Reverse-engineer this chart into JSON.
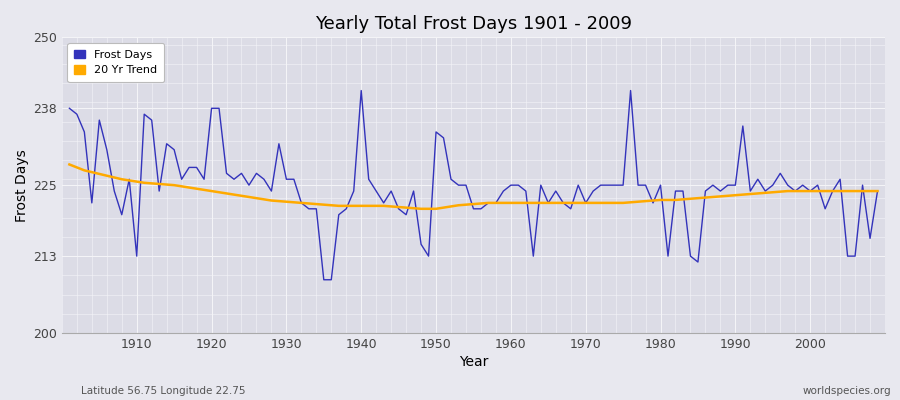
{
  "title": "Yearly Total Frost Days 1901 - 2009",
  "xlabel": "Year",
  "ylabel": "Frost Days",
  "footnote_left": "Latitude 56.75 Longitude 22.75",
  "footnote_right": "worldspecies.org",
  "ylim": [
    200,
    250
  ],
  "yticks": [
    200,
    213,
    225,
    238,
    250
  ],
  "xlim": [
    1900,
    2010
  ],
  "fig_bg_color": "#e8e8ef",
  "plot_bg_color": "#dcdce6",
  "grid_color": "#f5f5f8",
  "frost_color": "#3333bb",
  "trend_color": "#ffaa00",
  "legend_label_frost": "Frost Days",
  "legend_label_trend": "20 Yr Trend",
  "years": [
    1901,
    1902,
    1903,
    1904,
    1905,
    1906,
    1907,
    1908,
    1909,
    1910,
    1911,
    1912,
    1913,
    1914,
    1915,
    1916,
    1917,
    1918,
    1919,
    1920,
    1921,
    1922,
    1923,
    1924,
    1925,
    1926,
    1927,
    1928,
    1929,
    1930,
    1931,
    1932,
    1933,
    1934,
    1935,
    1936,
    1937,
    1938,
    1939,
    1940,
    1941,
    1942,
    1943,
    1944,
    1945,
    1946,
    1947,
    1948,
    1949,
    1950,
    1951,
    1952,
    1953,
    1954,
    1955,
    1956,
    1957,
    1958,
    1959,
    1960,
    1961,
    1962,
    1963,
    1964,
    1965,
    1966,
    1967,
    1968,
    1969,
    1970,
    1971,
    1972,
    1973,
    1974,
    1975,
    1976,
    1977,
    1978,
    1979,
    1980,
    1981,
    1982,
    1983,
    1984,
    1985,
    1986,
    1987,
    1988,
    1989,
    1990,
    1991,
    1992,
    1993,
    1994,
    1995,
    1996,
    1997,
    1998,
    1999,
    2000,
    2001,
    2002,
    2003,
    2004,
    2005,
    2006,
    2007,
    2008,
    2009
  ],
  "frost_days": [
    238,
    237,
    234,
    222,
    236,
    231,
    224,
    220,
    226,
    213,
    237,
    236,
    224,
    232,
    231,
    226,
    228,
    228,
    226,
    238,
    238,
    227,
    226,
    227,
    225,
    227,
    226,
    224,
    232,
    226,
    226,
    222,
    221,
    221,
    209,
    209,
    220,
    221,
    224,
    241,
    226,
    224,
    222,
    224,
    221,
    220,
    224,
    215,
    213,
    234,
    233,
    226,
    225,
    225,
    221,
    221,
    222,
    222,
    224,
    225,
    225,
    224,
    213,
    225,
    222,
    224,
    222,
    221,
    225,
    222,
    224,
    225,
    225,
    225,
    225,
    241,
    225,
    225,
    222,
    225,
    213,
    224,
    224,
    213,
    212,
    224,
    225,
    224,
    225,
    225,
    235,
    224,
    226,
    224,
    225,
    227,
    225,
    224,
    225,
    224,
    225,
    221,
    224,
    226,
    213,
    213,
    225,
    216,
    224
  ],
  "trend": [
    228.5,
    228.0,
    227.5,
    227.2,
    226.9,
    226.6,
    226.3,
    226.0,
    225.8,
    225.6,
    225.4,
    225.3,
    225.2,
    225.1,
    225.0,
    224.8,
    224.6,
    224.4,
    224.2,
    224.0,
    223.8,
    223.6,
    223.4,
    223.2,
    223.0,
    222.8,
    222.6,
    222.4,
    222.3,
    222.2,
    222.1,
    222.0,
    221.9,
    221.8,
    221.7,
    221.6,
    221.5,
    221.5,
    221.5,
    221.5,
    221.5,
    221.5,
    221.5,
    221.4,
    221.3,
    221.2,
    221.1,
    221.0,
    221.0,
    221.0,
    221.2,
    221.4,
    221.6,
    221.7,
    221.8,
    221.9,
    222.0,
    222.0,
    222.0,
    222.0,
    222.0,
    222.0,
    222.0,
    222.0,
    222.0,
    222.0,
    222.0,
    222.0,
    222.0,
    222.0,
    222.0,
    222.0,
    222.0,
    222.0,
    222.0,
    222.1,
    222.2,
    222.3,
    222.4,
    222.5,
    222.5,
    222.5,
    222.6,
    222.7,
    222.8,
    222.9,
    223.0,
    223.1,
    223.2,
    223.3,
    223.4,
    223.5,
    223.6,
    223.7,
    223.8,
    223.9,
    224.0,
    224.0,
    224.0,
    224.0,
    224.0,
    224.0,
    224.0,
    224.0,
    224.0,
    224.0,
    224.0,
    224.0,
    224.0
  ]
}
